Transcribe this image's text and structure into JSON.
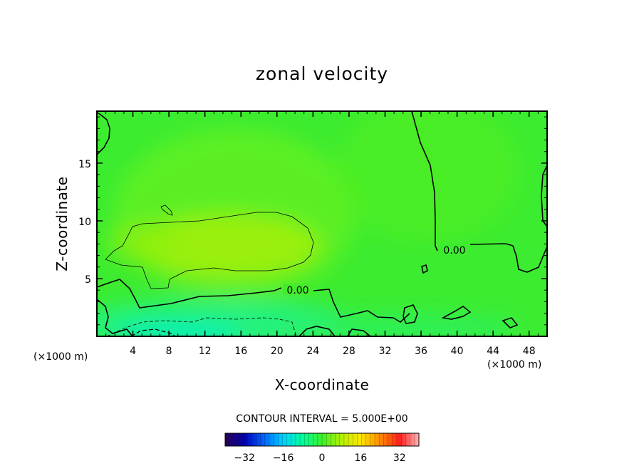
{
  "chart_data": {
    "type": "heatmap",
    "title": "zonal velocity",
    "xlabel": "X-coordinate",
    "ylabel": "Z-coordinate",
    "x_unit": "(×1000 m)",
    "y_unit": "(×1000 m)",
    "xlim": [
      0,
      50
    ],
    "ylim": [
      0,
      19.5
    ],
    "x_ticks": [
      4,
      8,
      12,
      16,
      20,
      24,
      28,
      32,
      36,
      40,
      44,
      48
    ],
    "y_ticks": [
      5,
      10,
      15
    ],
    "contour_interval_text": "CONTOUR INTERVAL = 5.000E+00",
    "contour_labels": [
      "0.00",
      "0.00"
    ],
    "colorbar": {
      "min": -40,
      "max": 40,
      "ticks": [
        -32,
        -16,
        0,
        16,
        32
      ],
      "tick_labels": [
        "−32",
        "−16",
        "0",
        "16",
        "32"
      ]
    },
    "colormap": [
      "#2a0050",
      "#0000b4",
      "#0064ff",
      "#00d2ff",
      "#00ff9a",
      "#3cf02c",
      "#b4f000",
      "#ffe600",
      "#ff8c00",
      "#ff1e1e",
      "#ffb4b4"
    ]
  }
}
